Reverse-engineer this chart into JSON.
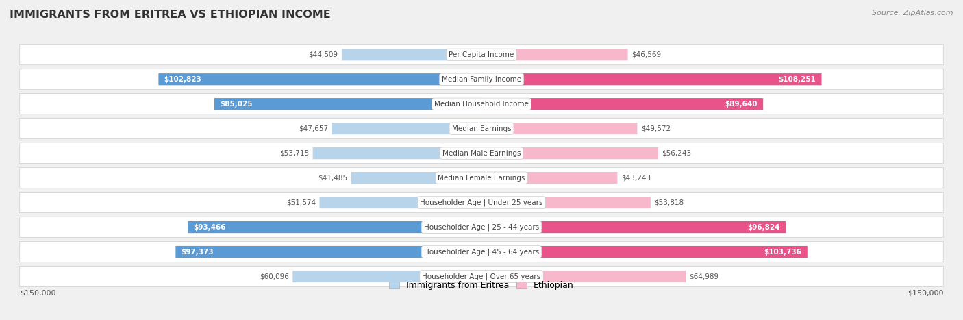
{
  "title": "IMMIGRANTS FROM ERITREA VS ETHIOPIAN INCOME",
  "source": "Source: ZipAtlas.com",
  "categories": [
    "Per Capita Income",
    "Median Family Income",
    "Median Household Income",
    "Median Earnings",
    "Median Male Earnings",
    "Median Female Earnings",
    "Householder Age | Under 25 years",
    "Householder Age | 25 - 44 years",
    "Householder Age | 45 - 64 years",
    "Householder Age | Over 65 years"
  ],
  "eritrea_values": [
    44509,
    102823,
    85025,
    47657,
    53715,
    41485,
    51574,
    93466,
    97373,
    60096
  ],
  "ethiopian_values": [
    46569,
    108251,
    89640,
    49572,
    56243,
    43243,
    53818,
    96824,
    103736,
    64989
  ],
  "eritrea_labels": [
    "$44,509",
    "$102,823",
    "$85,025",
    "$47,657",
    "$53,715",
    "$41,485",
    "$51,574",
    "$93,466",
    "$97,373",
    "$60,096"
  ],
  "ethiopian_labels": [
    "$46,569",
    "$108,251",
    "$89,640",
    "$49,572",
    "$56,243",
    "$43,243",
    "$53,818",
    "$96,824",
    "$103,736",
    "$64,989"
  ],
  "eritrea_color_light": "#b8d4ea",
  "eritrea_color_dark": "#5b9bd5",
  "ethiopian_color_light": "#f8b8cc",
  "ethiopian_color_dark": "#e8538a",
  "label_inside_threshold": 70000,
  "max_value": 150000,
  "background_color": "#f0f0f0",
  "row_bg_color": "#ffffff",
  "row_border_color": "#cccccc",
  "title_color": "#333333",
  "source_color": "#888888",
  "label_outside_color": "#555555",
  "label_inside_color": "#ffffff"
}
